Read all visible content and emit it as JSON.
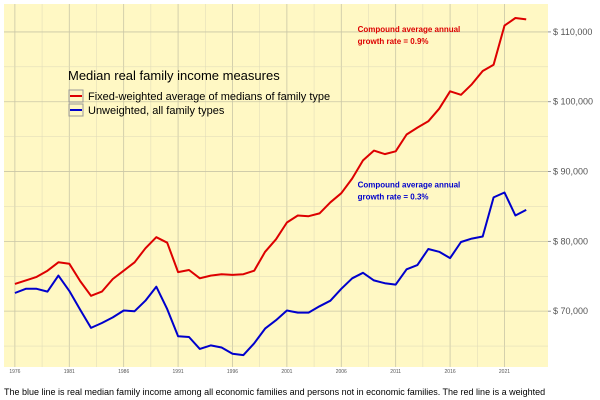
{
  "chart_data": {
    "type": "line",
    "title": "",
    "xlabel": "",
    "ylabel": "",
    "x": [
      1976,
      1977,
      1978,
      1979,
      1980,
      1981,
      1982,
      1983,
      1984,
      1985,
      1986,
      1987,
      1988,
      1989,
      1990,
      1991,
      1992,
      1993,
      1994,
      1995,
      1996,
      1997,
      1998,
      1999,
      2000,
      2001,
      2002,
      2003,
      2004,
      2005,
      2006,
      2007,
      2008,
      2009,
      2010,
      2011,
      2012,
      2013,
      2014,
      2015,
      2016,
      2017,
      2018,
      2019,
      2020,
      2021,
      2022,
      2023
    ],
    "series": [
      {
        "name": "Fixed-weighted average of medians of family type",
        "color": "#dd0000",
        "values": [
          73900,
          74400,
          74900,
          75800,
          77000,
          76800,
          74300,
          72200,
          72800,
          74600,
          75800,
          77000,
          79000,
          80600,
          79800,
          75600,
          75900,
          74700,
          75100,
          75300,
          75200,
          75300,
          75800,
          78500,
          80300,
          82700,
          83700,
          83600,
          84000,
          85600,
          86900,
          89000,
          91600,
          93000,
          92500,
          92900,
          95300,
          96300,
          97200,
          99000,
          101500,
          101000,
          102500,
          104400,
          105300,
          110900,
          112000,
          111800
        ],
        "compound_rate_label": "Compound average annual",
        "compound_rate_value": "growth rate = 0.9%"
      },
      {
        "name": "Unweighted, all family types",
        "color": "#0000cc",
        "values": [
          72600,
          73200,
          73200,
          72800,
          75100,
          72900,
          70200,
          67600,
          68300,
          69100,
          70100,
          70000,
          71500,
          73500,
          70300,
          66400,
          66300,
          64600,
          65100,
          64800,
          63900,
          63700,
          65400,
          67500,
          68700,
          70100,
          69800,
          69800,
          70700,
          71500,
          73200,
          74700,
          75500,
          74400,
          74000,
          73800,
          76000,
          76600,
          78900,
          78500,
          77600,
          79900,
          80400,
          80700,
          86300,
          87000,
          83700,
          84500
        ],
        "compound_rate_label": "Compound average annual",
        "compound_rate_value": "growth rate = 0.3%"
      }
    ],
    "xlim": [
      1975,
      2025
    ],
    "ylim": [
      62000,
      114000
    ],
    "y_ticks": [
      70000,
      80000,
      90000,
      100000,
      110000
    ],
    "y_tick_labels": [
      "$ 70,000",
      "$ 80,000",
      "$ 90,000",
      "$ 100,000",
      "$ 110,000"
    ],
    "x_ticks": [
      1976,
      1981,
      1986,
      1991,
      1996,
      2001,
      2006,
      2011,
      2016,
      2021
    ],
    "x_tick_labels": [
      "1976",
      "1981",
      "1986",
      "1991",
      "1996",
      "2001",
      "2006",
      "2011",
      "2016",
      "2021"
    ],
    "y_axis_side": "right",
    "grid": true,
    "background": "#fff8c4",
    "legend": {
      "title": "Median real family income measures",
      "placement": "top-left"
    }
  },
  "caption": "The blue line is real median family income among all economic families and persons not in economic families. The red line is a weighted"
}
